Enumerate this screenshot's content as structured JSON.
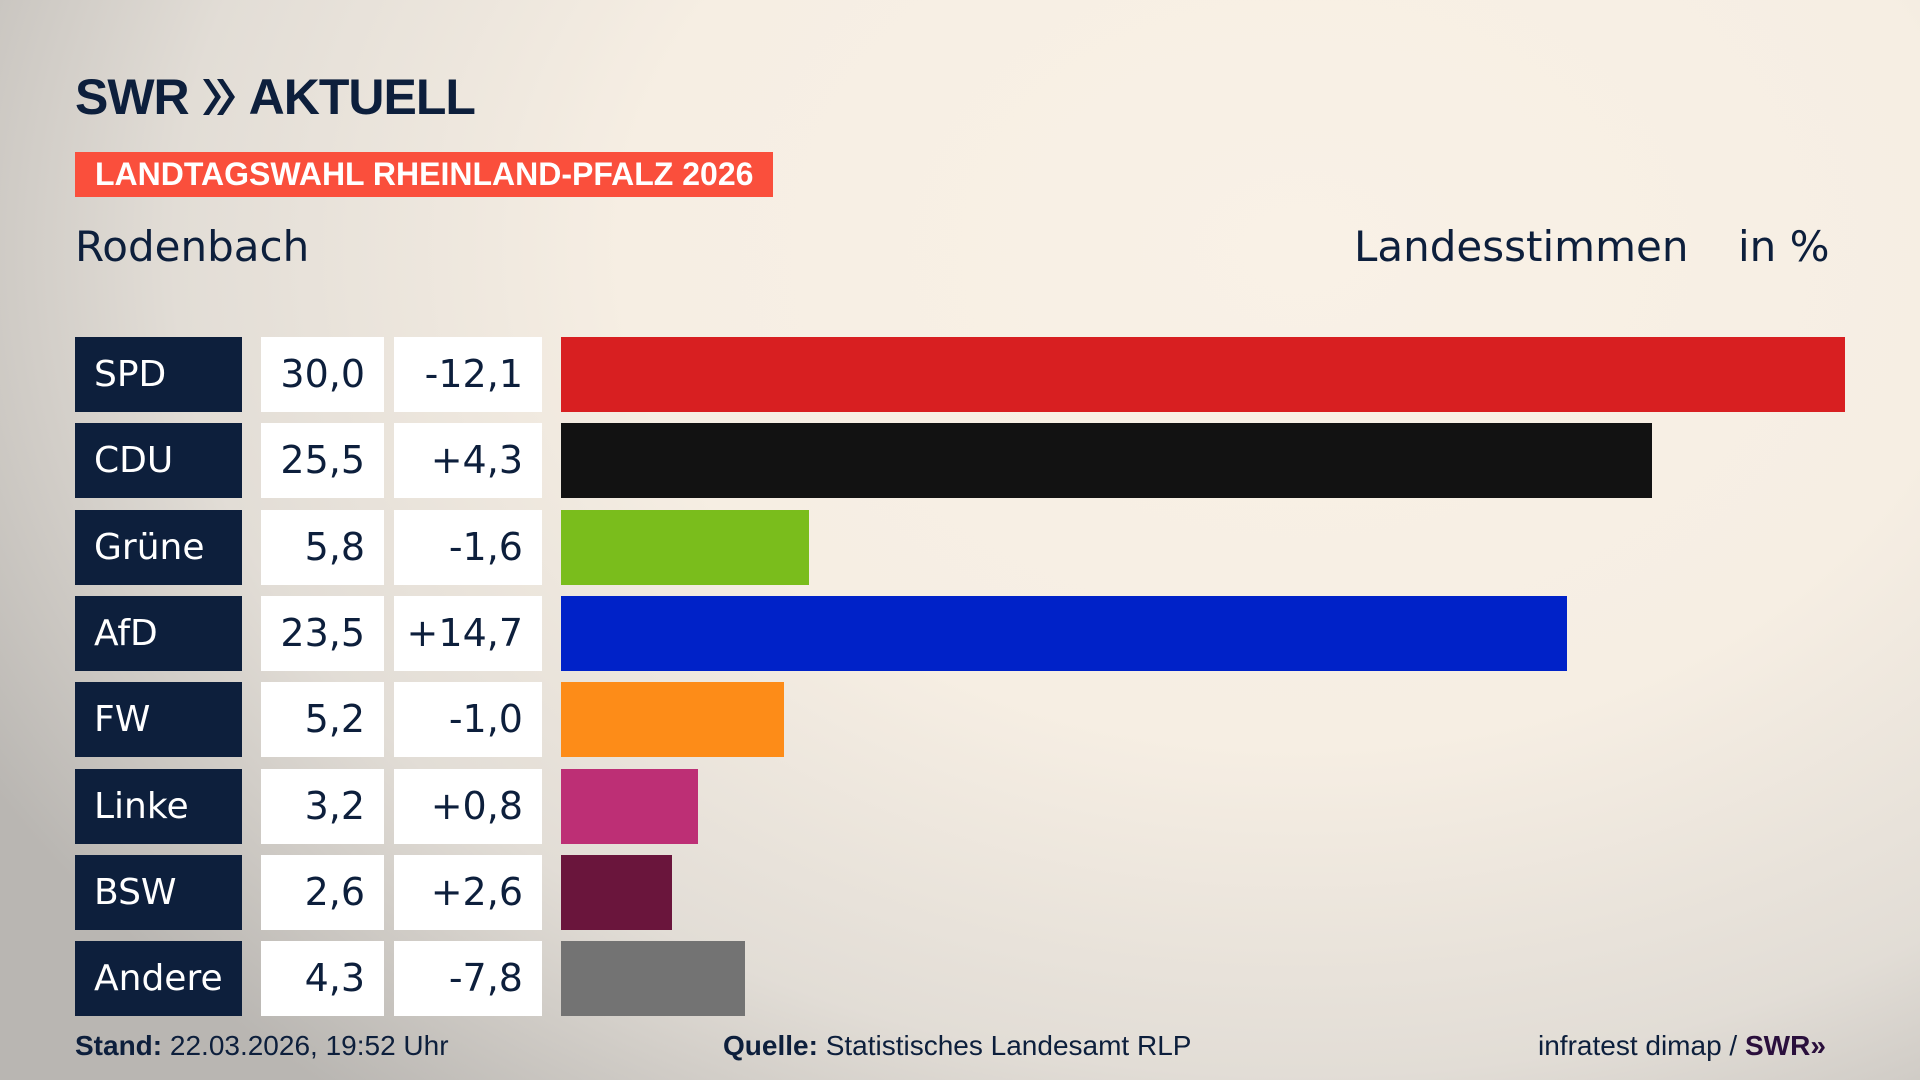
{
  "brand": {
    "logo_text": "SWR",
    "logo_text2": "AKTUELL"
  },
  "banner": "LANDTAGSWAHL RHEINLAND-PFALZ 2026",
  "region": "Rodenbach",
  "measure": "Landesstimmen",
  "unit": "in %",
  "chart_data": {
    "type": "bar",
    "orientation": "horizontal",
    "categories": [
      "SPD",
      "CDU",
      "Grüne",
      "AfD",
      "FW",
      "Linke",
      "BSW",
      "Andere"
    ],
    "values": [
      30.0,
      25.5,
      5.8,
      23.5,
      5.2,
      3.2,
      2.6,
      4.3
    ],
    "value_labels": [
      "30,0",
      "25,5",
      "5,8",
      "23,5",
      "5,2",
      "3,2",
      "2,6",
      "4,3"
    ],
    "diff_labels": [
      "-12,1",
      "+4,3",
      "-1,6",
      "+14,7",
      "-1,0",
      "+0,8",
      "+2,6",
      "-7,8"
    ],
    "colors": [
      "#d81f21",
      "#121212",
      "#7abd1c",
      "#0022c8",
      "#fd8c18",
      "#bd2f75",
      "#6a153c",
      "#737373"
    ],
    "xlim": [
      0,
      30
    ]
  },
  "footer": {
    "stand_label": "Stand:",
    "stand_value": "22.03.2026, 19:52 Uhr",
    "quelle_label": "Quelle:",
    "quelle_value": "Statistisches Landesamt RLP",
    "credit": "infratest dimap /",
    "credit_brand": "SWR"
  }
}
